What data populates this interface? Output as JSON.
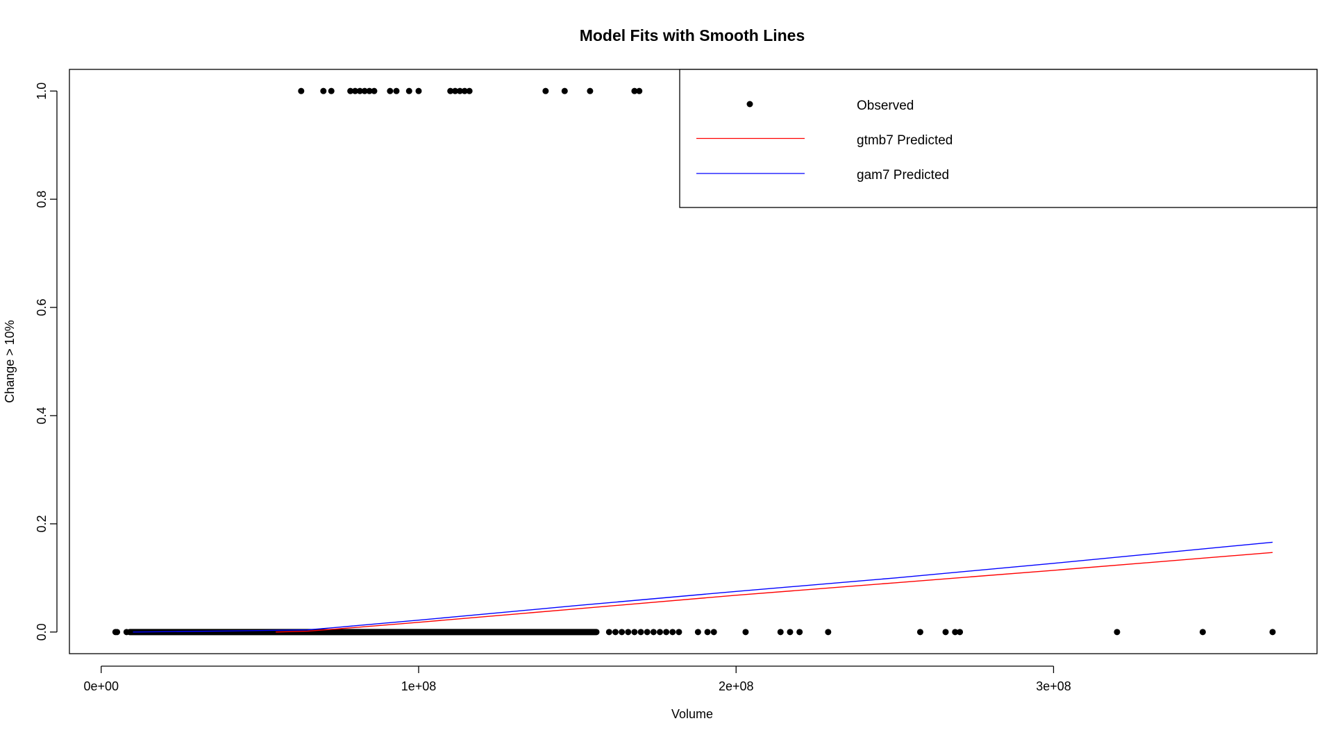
{
  "chart_data": {
    "type": "scatter",
    "title": "Model Fits with Smooth Lines",
    "xlabel": "Volume",
    "ylabel": "Change > 10%",
    "xlim": [
      -10000000,
      383000000
    ],
    "ylim": [
      -0.04,
      1.04
    ],
    "x_ticks": [
      {
        "value": 0,
        "label": "0e+00"
      },
      {
        "value": 100000000,
        "label": "1e+08"
      },
      {
        "value": 200000000,
        "label": "2e+08"
      },
      {
        "value": 300000000,
        "label": "3e+08"
      }
    ],
    "y_ticks": [
      {
        "value": 0.0,
        "label": "0.0"
      },
      {
        "value": 0.2,
        "label": "0.2"
      },
      {
        "value": 0.4,
        "label": "0.4"
      },
      {
        "value": 0.6,
        "label": "0.6"
      },
      {
        "value": 0.8,
        "label": "0.8"
      },
      {
        "value": 1.0,
        "label": "1.0"
      }
    ],
    "grid": false,
    "legend_position": "top-right",
    "observed": {
      "name": "Observed",
      "color": "#000000",
      "x_ones": [
        63000000,
        70000000,
        72500000,
        78500000,
        80000000,
        81500000,
        83000000,
        84500000,
        86000000,
        91000000,
        93000000,
        97000000,
        100000000,
        110000000,
        111500000,
        113000000,
        114500000,
        116000000,
        140000000,
        146000000,
        154000000,
        168000000,
        169500000
      ],
      "x_zeros_points": [
        4500000,
        5000000,
        8000000,
        160000000,
        162000000,
        164000000,
        166000000,
        168000000,
        170000000,
        172000000,
        174000000,
        176000000,
        178000000,
        180000000,
        182000000,
        188000000,
        191000000,
        193000000,
        203000000,
        214000000,
        217000000,
        220000000,
        229000000,
        258000000,
        266000000,
        269000000,
        270500000,
        320000000,
        347000000,
        369000000
      ],
      "x_zeros_dense_range": [
        9000000,
        156000000
      ]
    },
    "series": [
      {
        "name": "gtmb7 Predicted",
        "color": "#ff0000",
        "x": [
          55000000,
          65000000,
          75000000,
          100000000,
          150000000,
          200000000,
          250000000,
          300000000,
          369000000
        ],
        "y": [
          0.0,
          0.0015,
          0.006,
          0.018,
          0.043,
          0.068,
          0.091,
          0.114,
          0.147
        ]
      },
      {
        "name": "gam7 Predicted",
        "color": "#0000ff",
        "x": [
          10000000,
          40000000,
          65000000,
          75000000,
          100000000,
          150000000,
          200000000,
          250000000,
          300000000,
          369000000
        ],
        "y": [
          0.0,
          0.002,
          0.004,
          0.009,
          0.022,
          0.049,
          0.075,
          0.1,
          0.127,
          0.166
        ]
      }
    ]
  },
  "legend": {
    "observed_label": "Observed",
    "gtmb7_label": "gtmb7 Predicted",
    "gam7_label": "gam7 Predicted"
  }
}
